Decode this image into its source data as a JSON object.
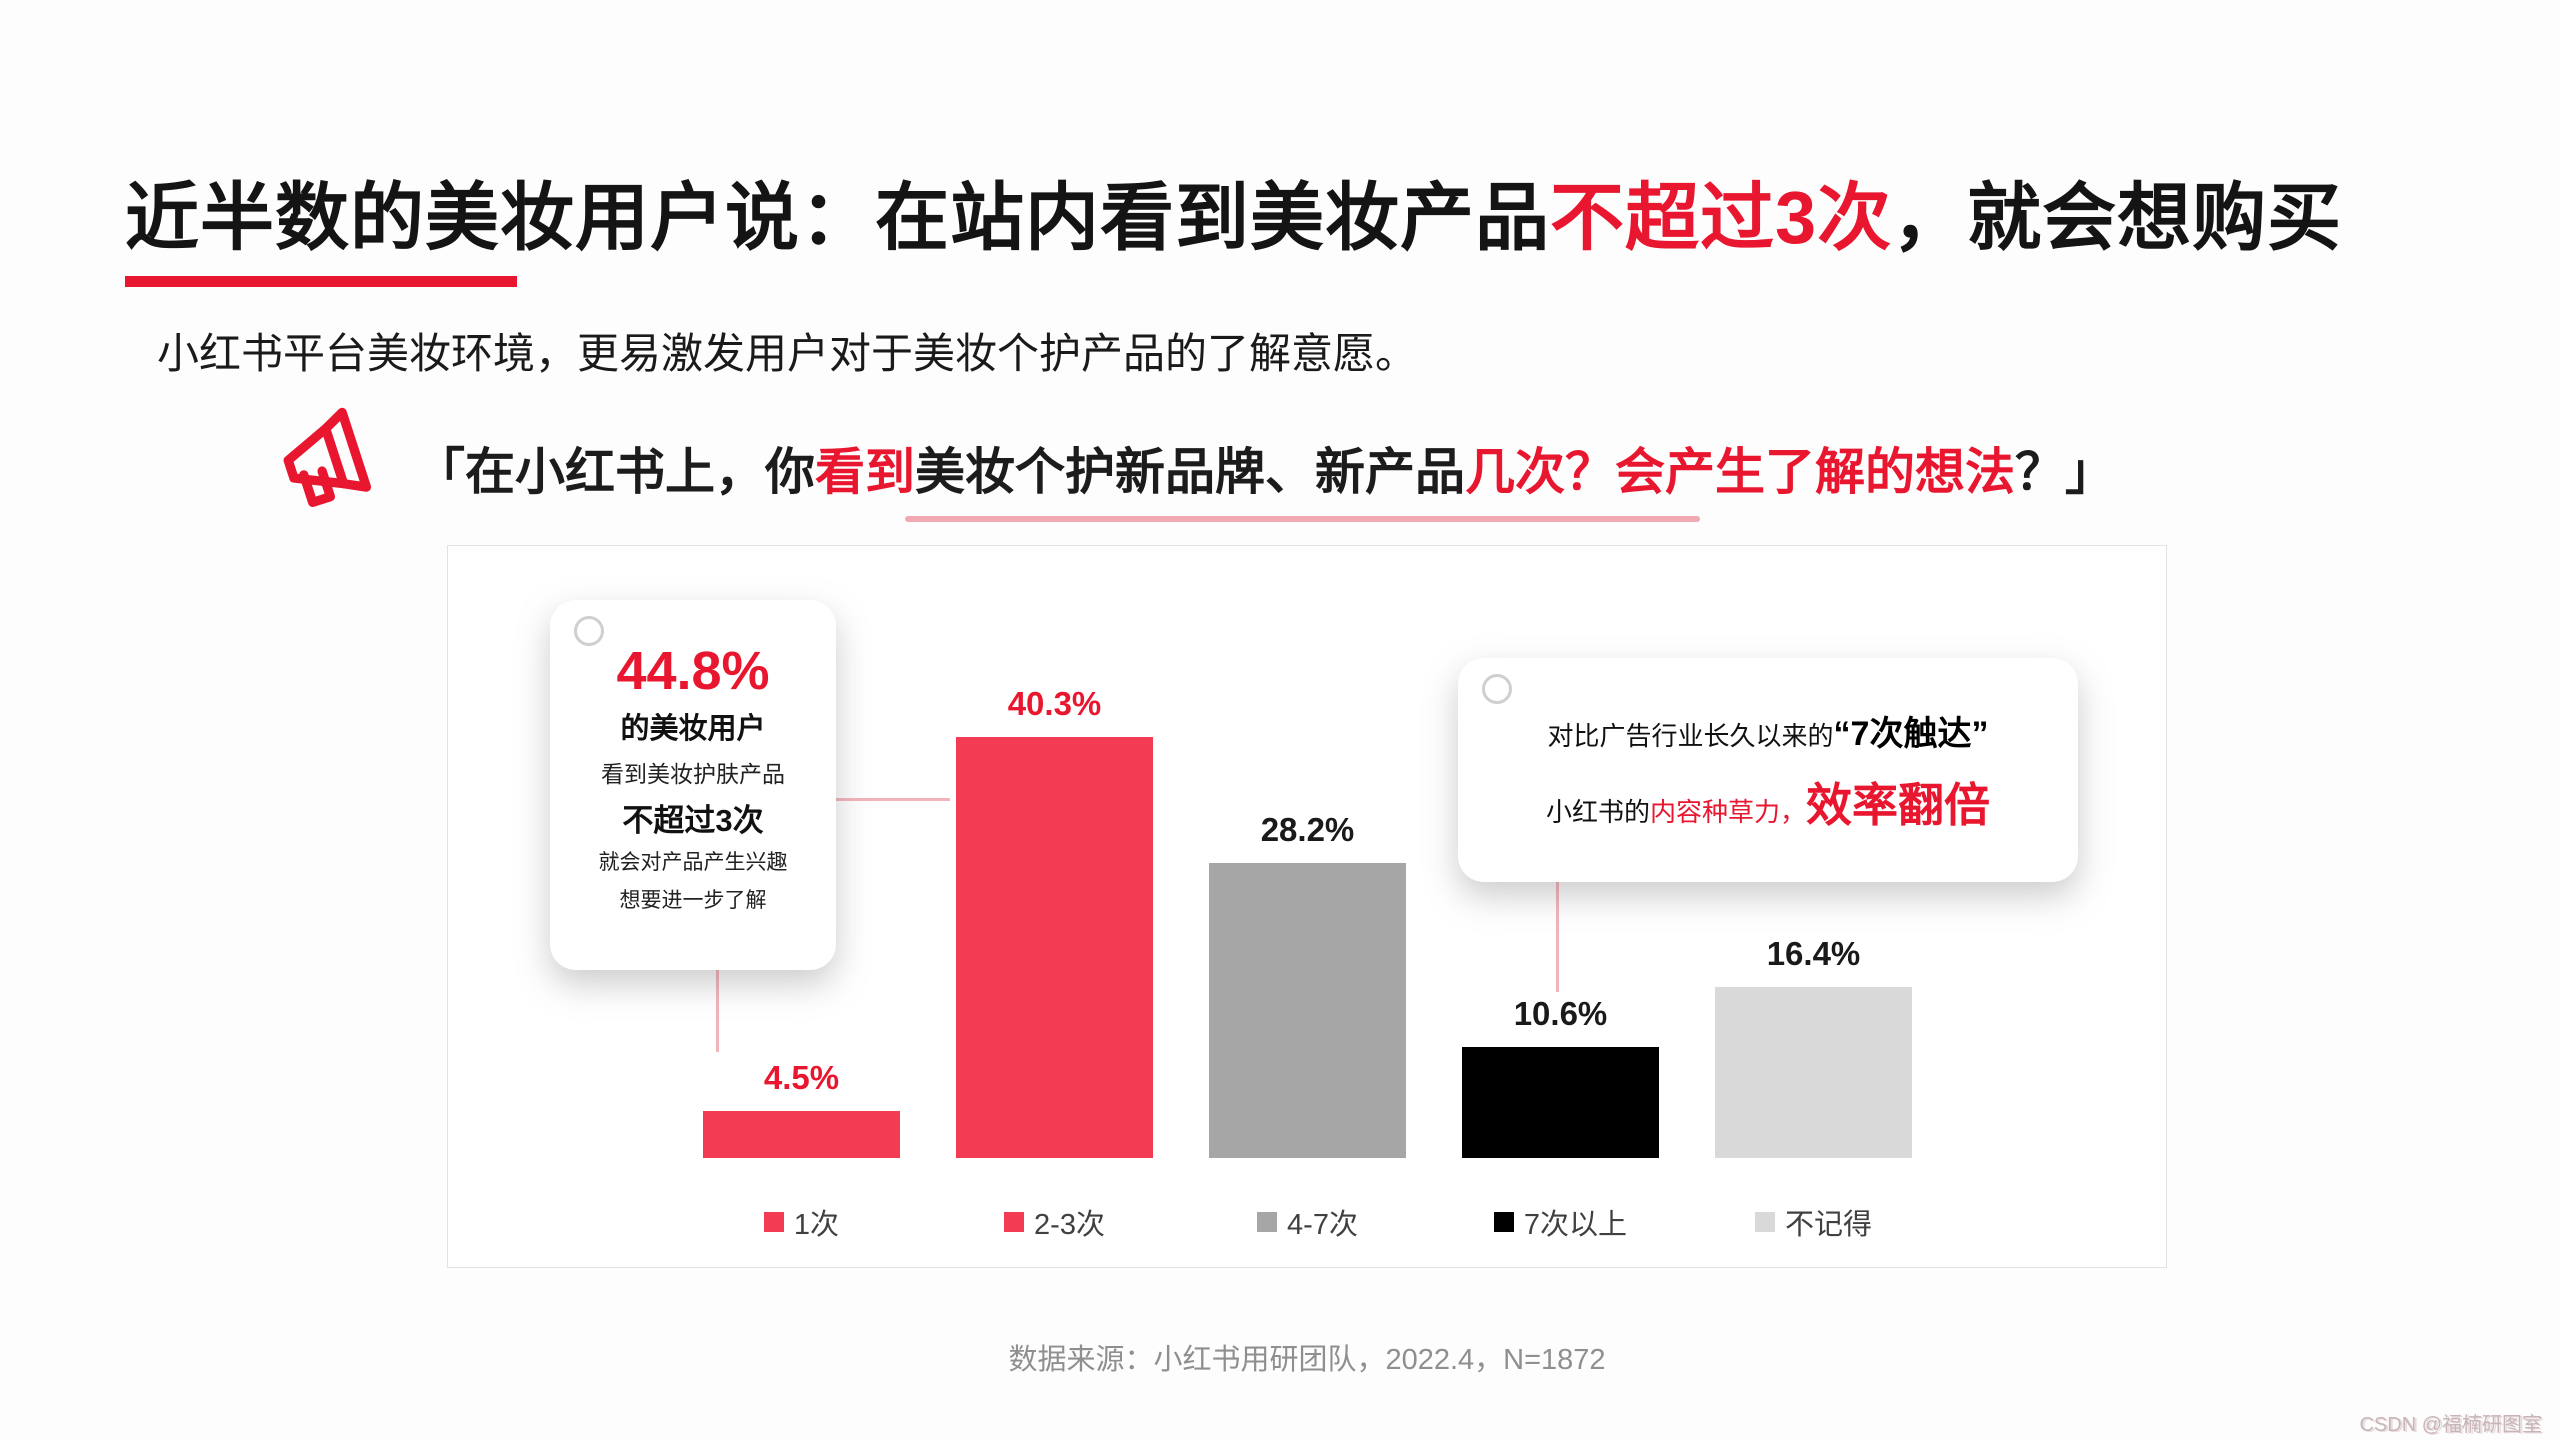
{
  "title": {
    "part1": "近半数的美妆用户说：在站内看到美妆产品",
    "part2": "不超过3次",
    "part3": "，就会想购买"
  },
  "subtitle": "小红书平台美妆环境，更易激发用户对于美妆个护产品的了解意愿。",
  "quote": {
    "seg1": "「在小红书上，你",
    "seg2": "看到",
    "seg3": "美妆个护新品牌、新产品",
    "seg4": "几次？",
    "seg5": "会产生了解的想法",
    "seg6": "？」"
  },
  "callout_left": {
    "stat": "44.8%",
    "line1": "的美妆用户",
    "line2": "看到美妆护肤产品",
    "line3": "不超过3次",
    "line4": "就会对产品产生兴趣",
    "line5": "想要进一步了解"
  },
  "callout_right": {
    "line1_normal": "对比广告行业长久以来的",
    "line1_bold": "“7次触达”",
    "line2_normal": "小红书的",
    "line2_red": "内容种草力，",
    "line2_big": "效率翻倍"
  },
  "source": "数据来源：小红书用研团队，2022.4，N=1872",
  "watermark": "CSDN @福楠研图室",
  "colors": {
    "accent_red": "#e8172f",
    "bar_red": "#f43b54",
    "bar_gray": "#a6a6a6",
    "bar_black": "#000000",
    "bar_light_gray": "#d9d9d9",
    "connector_pink": "#f3b3bc"
  },
  "icons": {
    "megaphone": "megaphone-icon"
  },
  "chart_data": {
    "type": "bar",
    "title": "在小红书上，你看到美妆个护新品牌、新产品几次？会产生了解的想法？",
    "categories": [
      "1次",
      "2-3次",
      "4-7次",
      "7次以上",
      "不记得"
    ],
    "values": [
      4.5,
      40.3,
      28.2,
      10.6,
      16.4
    ],
    "unit": "%",
    "bar_colors": [
      "#f43b54",
      "#f43b54",
      "#a6a6a6",
      "#000000",
      "#d9d9d9"
    ],
    "label_colors": [
      "#e8172f",
      "#e8172f",
      "#1a1a1a",
      "#1a1a1a",
      "#1a1a1a"
    ],
    "xlabel": "",
    "ylabel": "",
    "ylim": [
      0,
      45
    ],
    "grid": false,
    "legend_position": "bottom"
  }
}
